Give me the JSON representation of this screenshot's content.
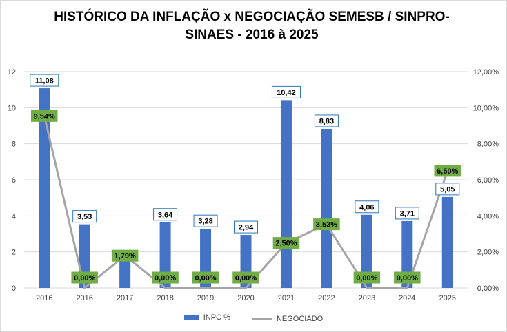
{
  "title_line1": "HISTÓRICO  DA INFLAÇÃO x NEGOCIAÇÃO SEMESB  / SINPRO-",
  "title_line2": "SINAES -    2016 à 2025",
  "colors": {
    "bar": "#4472c4",
    "line": "#a5a5a5",
    "neg_label_bg": "#70ad47",
    "bar_label_border": "#2e75b6",
    "grid": "#d9d9d9"
  },
  "chart_data": {
    "type": "bar+line",
    "categories": [
      "2016",
      "2016",
      "2017",
      "2018",
      "2019",
      "2020",
      "2021",
      "2022",
      "2023",
      "2024",
      "2025"
    ],
    "series": [
      {
        "name": "INPC %",
        "type": "bar",
        "axis": "left",
        "values": [
          11.08,
          3.53,
          1.79,
          3.64,
          3.28,
          2.94,
          10.42,
          8.83,
          4.06,
          3.71,
          5.05
        ],
        "labels": [
          "11,08",
          "3,53",
          "",
          "3,64",
          "3,28",
          "2,94",
          "10,42",
          "8,83",
          "4,06",
          "3,71",
          "5,05"
        ]
      },
      {
        "name": "NEGOCIADO",
        "type": "line",
        "axis": "right",
        "values": [
          9.54,
          0.0,
          1.79,
          0.0,
          0.0,
          0.0,
          2.5,
          3.53,
          0.0,
          0.0,
          6.5
        ],
        "labels": [
          "9,54%",
          "0,00%",
          "1,79%",
          "0,00%",
          "0,00%",
          "0,00%",
          "2,50%",
          "3,53%",
          "0,00%",
          "0,00%",
          "6,50%"
        ]
      }
    ],
    "y_left": {
      "min": 0,
      "max": 12,
      "ticks": [
        "0",
        "2",
        "4",
        "6",
        "8",
        "10",
        "12"
      ]
    },
    "y_right": {
      "min": 0,
      "max": 12,
      "ticks": [
        "0,00%",
        "2,00%",
        "4,00%",
        "6,00%",
        "8,00%",
        "10,00%",
        "12,00%"
      ]
    },
    "legend": [
      "INPC %",
      "NEGOCIADO"
    ],
    "grid": true
  }
}
